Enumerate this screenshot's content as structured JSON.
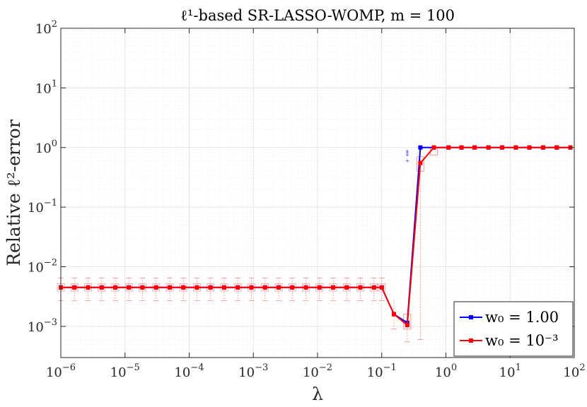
{
  "chart_data": {
    "type": "line",
    "title": "ℓ¹-based SR-LASSO-WOMP, m = 100",
    "xlabel": "λ",
    "ylabel": "Relative ℓ²-error",
    "xscale": "log",
    "yscale": "log",
    "xlim": [
      1e-06,
      100
    ],
    "ylim": [
      0.0003,
      100
    ],
    "xticks": [
      {
        "value": 1e-06,
        "base": "10",
        "exp": "−6"
      },
      {
        "value": 1e-05,
        "base": "10",
        "exp": "−5"
      },
      {
        "value": 0.0001,
        "base": "10",
        "exp": "−4"
      },
      {
        "value": 0.001,
        "base": "10",
        "exp": "−3"
      },
      {
        "value": 0.01,
        "base": "10",
        "exp": "−2"
      },
      {
        "value": 0.1,
        "base": "10",
        "exp": "−1"
      },
      {
        "value": 1,
        "base": "10",
        "exp": "0"
      },
      {
        "value": 10,
        "base": "10",
        "exp": "1"
      },
      {
        "value": 100,
        "base": "10",
        "exp": "2"
      }
    ],
    "yticks": [
      {
        "value": 0.001,
        "base": "10",
        "exp": "−3"
      },
      {
        "value": 0.01,
        "base": "10",
        "exp": "−2"
      },
      {
        "value": 0.1,
        "base": "10",
        "exp": "−1"
      },
      {
        "value": 1,
        "base": "10",
        "exp": "0"
      },
      {
        "value": 10,
        "base": "10",
        "exp": "1"
      },
      {
        "value": 100,
        "base": "10",
        "exp": "2"
      }
    ],
    "grid": true,
    "legend_position": "bottom-right",
    "series": [
      {
        "name": "w₀ = 1.00",
        "color": "#0000ff",
        "x": [
          1e-06,
          1.63e-06,
          2.66e-06,
          4.33e-06,
          7.05e-06,
          1.15e-05,
          1.87e-05,
          3.05e-05,
          4.98e-05,
          8.11e-05,
          0.000132,
          0.000215,
          0.000351,
          0.000572,
          0.000933,
          0.00152,
          0.00248,
          0.00404,
          0.00658,
          0.0107,
          0.0175,
          0.0285,
          0.0464,
          0.0756,
          0.1,
          0.155,
          0.25,
          0.4,
          0.65,
          1.1,
          1.75,
          2.8,
          4.6,
          7.5,
          12.3,
          20,
          32.7,
          53.4,
          87
        ],
        "y": [
          0.0045,
          0.0045,
          0.0045,
          0.0045,
          0.0045,
          0.0045,
          0.0045,
          0.0045,
          0.0045,
          0.0045,
          0.0045,
          0.0045,
          0.0045,
          0.0045,
          0.0045,
          0.0045,
          0.0045,
          0.0045,
          0.0045,
          0.0045,
          0.0045,
          0.0045,
          0.0045,
          0.0045,
          0.0045,
          0.0016,
          0.00115,
          1.0,
          1.0,
          1.0,
          1.0,
          1.0,
          1.0,
          1.0,
          1.0,
          1.0,
          1.0,
          1.0,
          1.0
        ]
      },
      {
        "name": "w₀ = 10⁻³",
        "color": "#ff0000",
        "x": [
          1e-06,
          1.63e-06,
          2.66e-06,
          4.33e-06,
          7.05e-06,
          1.15e-05,
          1.87e-05,
          3.05e-05,
          4.98e-05,
          8.11e-05,
          0.000132,
          0.000215,
          0.000351,
          0.000572,
          0.000933,
          0.00152,
          0.00248,
          0.00404,
          0.00658,
          0.0107,
          0.0175,
          0.0285,
          0.0464,
          0.0756,
          0.1,
          0.155,
          0.25,
          0.4,
          0.65,
          1.1,
          1.75,
          2.8,
          4.6,
          7.5,
          12.3,
          20,
          32.7,
          53.4,
          87
        ],
        "y": [
          0.0045,
          0.0045,
          0.0045,
          0.0045,
          0.0045,
          0.0045,
          0.0045,
          0.0045,
          0.0045,
          0.0045,
          0.0045,
          0.0045,
          0.0045,
          0.0045,
          0.0045,
          0.0045,
          0.0045,
          0.0045,
          0.0045,
          0.0045,
          0.0045,
          0.0045,
          0.0045,
          0.0045,
          0.0045,
          0.0016,
          0.00105,
          0.55,
          1.0,
          1.0,
          1.0,
          1.0,
          1.0,
          1.0,
          1.0,
          1.0,
          1.0,
          1.0,
          1.0
        ]
      }
    ],
    "boxplot_ranges": {
      "red_low": [
        0.0027,
        0.0065
      ],
      "red_dip": [
        [
          0.0009,
          0.0028
        ],
        [
          0.00055,
          0.0019
        ],
        [
          0.0006,
          0.7
        ]
      ],
      "blue_outliers": [
        0.6,
        0.75,
        0.82,
        0.87
      ]
    }
  }
}
